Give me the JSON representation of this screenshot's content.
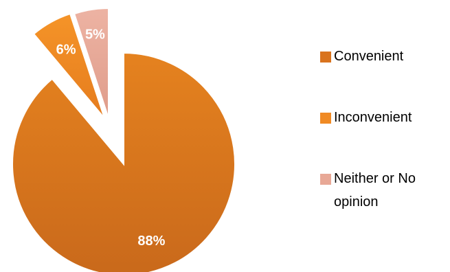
{
  "chart_data": {
    "type": "pie",
    "exploded": true,
    "categories": [
      "Convenient",
      "Inconvenient",
      "Neither or No opinion"
    ],
    "values": [
      88,
      6,
      5
    ],
    "data_labels": [
      "88%",
      "6%",
      "5%"
    ],
    "colors": [
      "#D9731E",
      "#F08A24",
      "#E8A896"
    ],
    "legend_position": "right",
    "legend_lines": [
      [
        "Convenient"
      ],
      [
        "Inconvenient"
      ],
      [
        "Neither or No",
        "opinion"
      ]
    ]
  }
}
